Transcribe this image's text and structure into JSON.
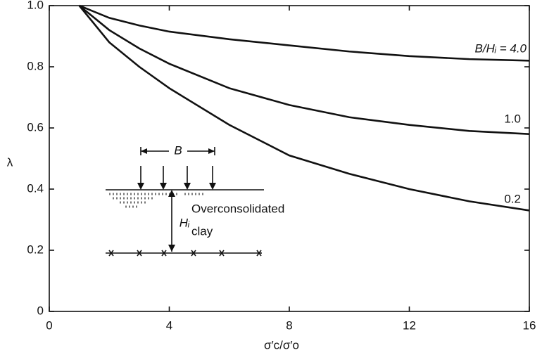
{
  "chart_data": {
    "type": "line",
    "x_label": "σ′c/σ′o",
    "y_label": "λ",
    "x": [
      1,
      2,
      3,
      4,
      6,
      8,
      10,
      12,
      14,
      16
    ],
    "series": [
      {
        "name": "B/Hᵢ = 4.0",
        "color": "#111111",
        "values": [
          1.0,
          0.96,
          0.935,
          0.915,
          0.89,
          0.87,
          0.85,
          0.835,
          0.825,
          0.82
        ]
      },
      {
        "name": "1.0",
        "color": "#111111",
        "values": [
          1.0,
          0.92,
          0.86,
          0.81,
          0.73,
          0.675,
          0.635,
          0.61,
          0.59,
          0.58
        ]
      },
      {
        "name": "0.2",
        "color": "#111111",
        "values": [
          1.0,
          0.88,
          0.8,
          0.73,
          0.61,
          0.51,
          0.45,
          0.4,
          0.36,
          0.33
        ]
      }
    ],
    "xlim": [
      0,
      16
    ],
    "xticks": [
      0,
      4,
      8,
      12,
      16
    ],
    "ylim": [
      0,
      1
    ],
    "yticks": [
      0,
      0.2,
      0.4,
      0.6,
      0.8,
      {
        "value": 1,
        "label": "1.0"
      }
    ],
    "annotations": [
      "B",
      "Hᵢ",
      "Overconsolidated",
      "clay"
    ]
  }
}
